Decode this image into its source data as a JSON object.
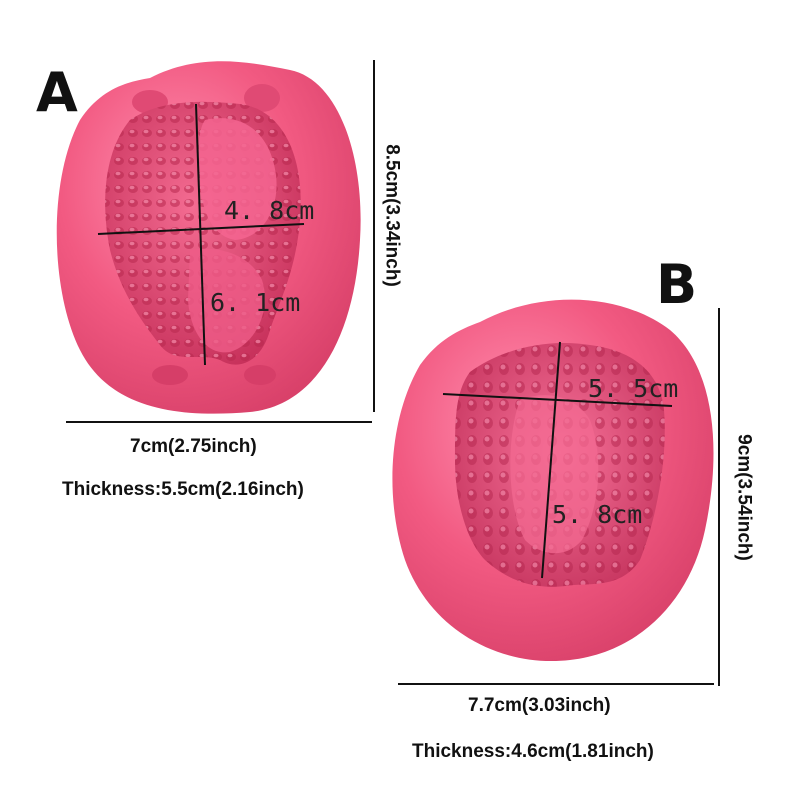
{
  "mold_a": {
    "label": "A",
    "width_label": "4. 8cm",
    "height_label": "6. 1cm",
    "overall_width": "7cm(2.75inch)",
    "overall_height": "8.5cm(3.34inch)",
    "thickness": "Thickness:5.5cm(2.16inch)"
  },
  "mold_b": {
    "label": "B",
    "width_label": "5. 5cm",
    "height_label": "5. 8cm",
    "overall_width": "7.7cm(3.03inch)",
    "overall_height": "9cm(3.54inch)",
    "thickness": "Thickness:4.6cm(1.81inch)"
  },
  "colors": {
    "mold_pink": "#f0557e",
    "mold_highlight": "#ff8fae",
    "cavity_pink": "#d83e6a",
    "line_color": "#111111"
  }
}
